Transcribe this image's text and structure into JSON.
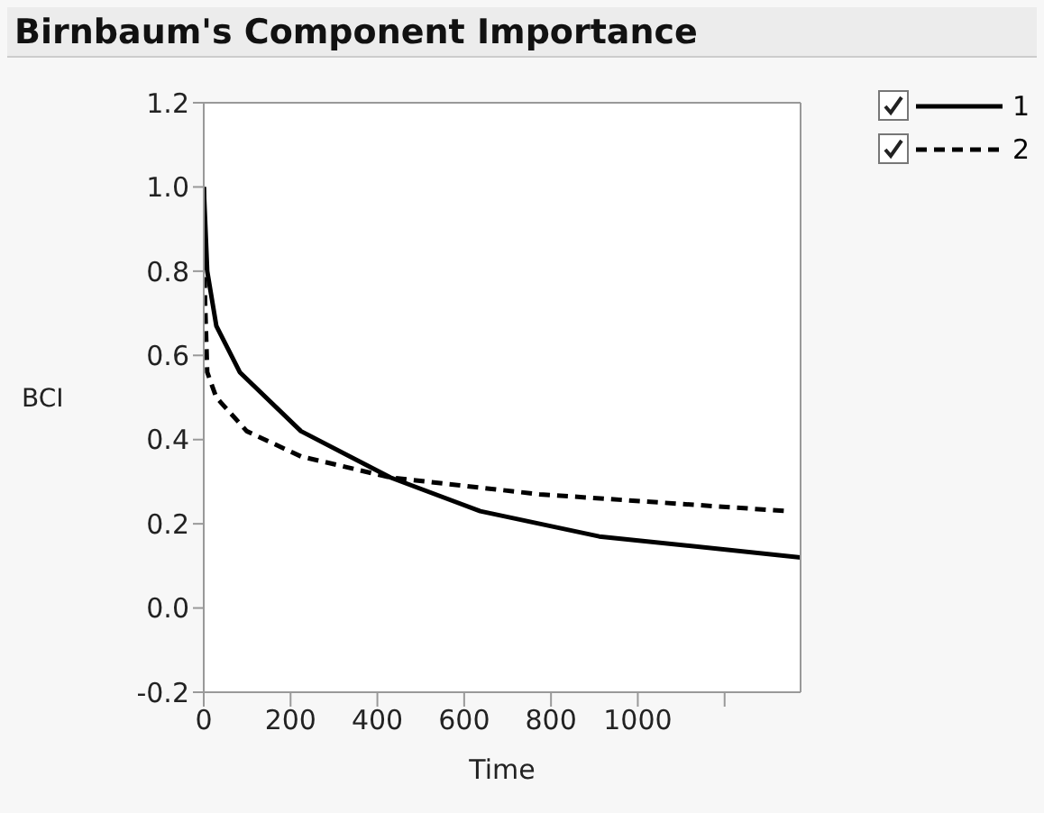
{
  "chart_data": {
    "type": "line",
    "title": "Birnbaum's Component Importance",
    "xlabel": "Time",
    "ylabel": "BCI",
    "xlim": [
      0,
      1375
    ],
    "xticks": [
      0,
      200,
      400,
      600,
      800,
      1000,
      {
        "value": 1200,
        "label": null
      }
    ],
    "ylim": [
      -0.2,
      1.2
    ],
    "yticks": [
      -0.2,
      {
        "value": 0,
        "label": "0.0"
      },
      0.2,
      0.4,
      0.6,
      0.8,
      {
        "value": 1,
        "label": "1.0"
      },
      1.2
    ],
    "grid": false,
    "legend": "top right",
    "marker": "none",
    "series": [
      {
        "name": "1",
        "color": "#000000",
        "line_style": "solid",
        "x": [
          0,
          8,
          29,
          83,
          224,
          430,
          637,
          911,
          1375
        ],
        "values": [
          1.0,
          0.8,
          0.67,
          0.56,
          0.42,
          0.31,
          0.23,
          0.17,
          0.12
        ]
      },
      {
        "name": "2",
        "color": "#000000",
        "line_style": "dashed",
        "x": [
          0,
          3,
          8,
          29,
          99,
          224,
          430,
          774,
          1346
        ],
        "values": [
          1.0,
          0.73,
          0.56,
          0.5,
          0.42,
          0.36,
          0.31,
          0.27,
          0.23
        ]
      }
    ]
  }
}
